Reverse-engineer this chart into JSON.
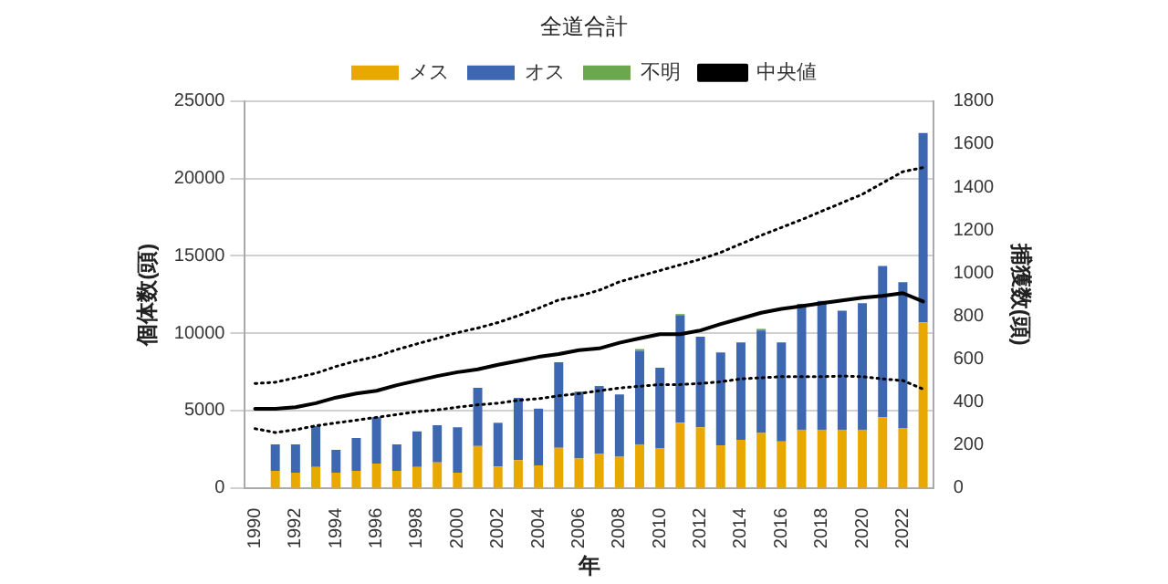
{
  "chart_data": {
    "type": "bar",
    "title": "全道合計",
    "xlabel": "年",
    "ylabel": "個体数(頭)",
    "y2label": "捕獲数(頭)",
    "categories": [
      "1990",
      null,
      "1992",
      null,
      "1994",
      null,
      "1996",
      null,
      "1998",
      null,
      "2000",
      null,
      "2002",
      null,
      "2004",
      null,
      "2006",
      null,
      "2008",
      null,
      "2010",
      null,
      "2012",
      null,
      "2014",
      null,
      "2016",
      null,
      "2018",
      null,
      "2020",
      null,
      "2022",
      null
    ],
    "stacked": true,
    "legend": "top",
    "grid": "y",
    "marker": "none",
    "ylim": [
      0,
      25000
    ],
    "yticks": [
      0,
      5000,
      10000,
      15000,
      20000,
      25000
    ],
    "y2lim": [
      0,
      1800
    ],
    "y2ticks": [
      0,
      200,
      400,
      600,
      800,
      1000,
      1200,
      1400,
      1600,
      1800
    ],
    "series": [
      {
        "name": "メス",
        "axis": "y2",
        "color": "#e8a800",
        "values": [
          null,
          79,
          71,
          97,
          71,
          79,
          113,
          79,
          97,
          119,
          71,
          195,
          100,
          129,
          105,
          187,
          137,
          158,
          145,
          203,
          184,
          303,
          282,
          198,
          224,
          256,
          216,
          271,
          271,
          271,
          271,
          329,
          277,
          770
        ]
      },
      {
        "name": "オス",
        "axis": "y2",
        "color": "#3d67b1",
        "values": [
          null,
          124,
          132,
          190,
          106,
          153,
          216,
          124,
          166,
          173,
          211,
          271,
          203,
          290,
          264,
          398,
          311,
          316,
          290,
          435,
          375,
          498,
          422,
          432,
          453,
          476,
          461,
          585,
          599,
          554,
          589,
          704,
          680,
          882
        ]
      },
      {
        "name": "不明",
        "axis": "y2",
        "color": "#6aa84f",
        "values": [
          null,
          null,
          null,
          null,
          null,
          null,
          null,
          null,
          null,
          null,
          null,
          null,
          null,
          null,
          null,
          null,
          null,
          null,
          null,
          8,
          null,
          8,
          null,
          null,
          null,
          8,
          null,
          null,
          null,
          null,
          null,
          null,
          null,
          null
        ]
      },
      {
        "name": "中央値",
        "type": "line",
        "axis": "y",
        "color": "#000000",
        "line_style": "solid",
        "values": [
          5110,
          5110,
          5220,
          5475,
          5840,
          6100,
          6280,
          6640,
          6935,
          7230,
          7480,
          7665,
          7960,
          8210,
          8470,
          8650,
          8900,
          9015,
          9380,
          9670,
          9930,
          9930,
          10180,
          10590,
          10950,
          11320,
          11570,
          11750,
          11940,
          12120,
          12300,
          12410,
          12590,
          12050
        ]
      },
      {
        "type": "line",
        "axis": "y",
        "color": "#000000",
        "line_style": "dotted",
        "values": [
          6750,
          6830,
          7120,
          7410,
          7850,
          8210,
          8500,
          8940,
          9310,
          9670,
          10040,
          10330,
          10690,
          11130,
          11610,
          12150,
          12400,
          12775,
          13320,
          13690,
          14050,
          14420,
          14780,
          15220,
          15770,
          16320,
          16830,
          17340,
          17890,
          18430,
          18980,
          19710,
          20440,
          20700
        ]
      },
      {
        "type": "line",
        "axis": "y",
        "color": "#000000",
        "line_style": "dotted",
        "values": [
          3830,
          3580,
          3760,
          4015,
          4200,
          4380,
          4560,
          4745,
          4930,
          5040,
          5220,
          5370,
          5475,
          5660,
          5770,
          5950,
          6100,
          6280,
          6460,
          6570,
          6680,
          6680,
          6750,
          6860,
          7045,
          7120,
          7190,
          7190,
          7190,
          7230,
          7190,
          7045,
          6935,
          6390
        ]
      }
    ]
  }
}
